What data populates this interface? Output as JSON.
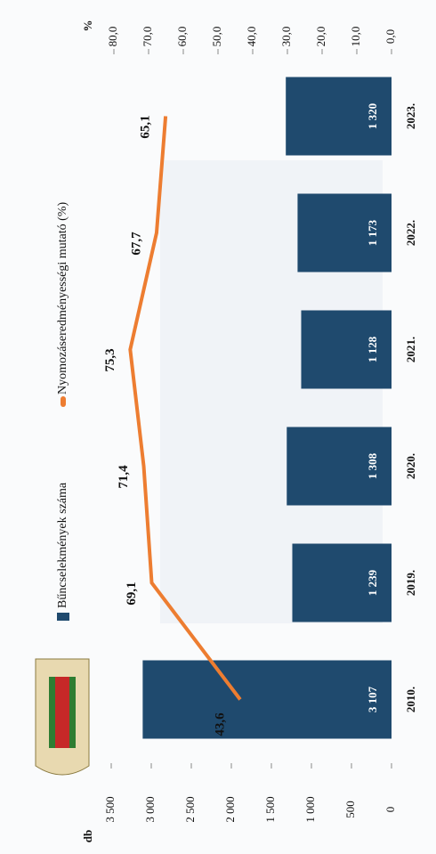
{
  "chart_data": {
    "type": "bar",
    "categories": [
      "2010.",
      "2019.",
      "2020.",
      "2021.",
      "2022.",
      "2023."
    ],
    "series": [
      {
        "name": "Bűncselekmények száma",
        "type": "bar",
        "color": "#1f4a6e",
        "values": [
          3107,
          1239,
          1308,
          1128,
          1173,
          1320
        ],
        "value_labels": [
          "3 107",
          "1 239",
          "1 308",
          "1 128",
          "1 173",
          "1 320"
        ]
      },
      {
        "name": "Nyomozáseredményességi mutató (%)",
        "type": "line",
        "color": "#ed7d31",
        "axis": "y2",
        "values": [
          43.6,
          69.1,
          71.4,
          75.3,
          67.7,
          65.1
        ],
        "value_labels": [
          "43,6",
          "69,1",
          "71,4",
          "75,3",
          "67,7",
          "65,1"
        ]
      }
    ],
    "y_label": "db",
    "y2_label": "%",
    "ylim": [
      0,
      3500
    ],
    "yticks": [
      0,
      500,
      {
        "value": 1000,
        "label": "1 000"
      },
      {
        "value": 1500,
        "label": "1 500"
      },
      {
        "value": 2000,
        "label": "2 000"
      },
      {
        "value": 2500,
        "label": "2 500"
      },
      {
        "value": 3000,
        "label": "3 000"
      },
      {
        "value": 3500,
        "label": "3 500"
      }
    ],
    "y2lim": [
      0,
      80
    ],
    "y2ticks": [
      {
        "value": 0,
        "label": "0,0"
      },
      {
        "value": 10,
        "label": "10,0"
      },
      {
        "value": 20,
        "label": "20,0"
      },
      {
        "value": 30,
        "label": "30,0"
      },
      {
        "value": 40,
        "label": "40,0"
      },
      {
        "value": 50,
        "label": "50,0"
      },
      {
        "value": 60,
        "label": "60,0"
      },
      {
        "value": 70,
        "label": "70,0"
      },
      {
        "value": 80,
        "label": "80,0"
      }
    ],
    "legend": "top"
  }
}
